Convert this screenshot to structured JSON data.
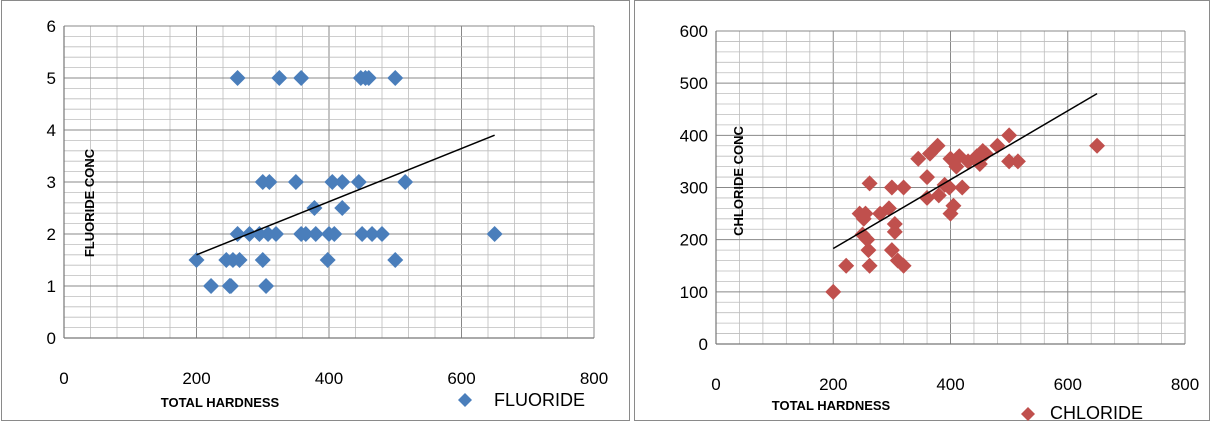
{
  "chart_data": [
    {
      "type": "scatter",
      "xlabel": "TOTAL HARDNESS",
      "ylabel": "FLUORIDE CONC",
      "xlim": [
        0,
        800
      ],
      "ylim": [
        0,
        6
      ],
      "xticks": [
        "0",
        "200",
        "400",
        "600",
        "800"
      ],
      "yticks": [
        "0",
        "1",
        "2",
        "3",
        "4",
        "5",
        "6"
      ],
      "legend_position": "bottom-right",
      "grid": true,
      "trendline": {
        "type": "linear",
        "from": [
          200,
          1.6
        ],
        "to": [
          650,
          3.9
        ]
      },
      "series": [
        {
          "name": "FLUORIDE",
          "color": "#4a7ebb",
          "marker": "diamond",
          "points": [
            [
              200,
              1.5
            ],
            [
              222,
              1.0
            ],
            [
              245,
              1.5
            ],
            [
              250,
              1.0
            ],
            [
              252,
              1.0
            ],
            [
              255,
              1.5
            ],
            [
              262,
              2.0
            ],
            [
              262,
              5.0
            ],
            [
              265,
              1.5
            ],
            [
              280,
              2.0
            ],
            [
              295,
              2.0
            ],
            [
              300,
              1.5
            ],
            [
              300,
              3.0
            ],
            [
              305,
              1.0
            ],
            [
              308,
              2.0
            ],
            [
              310,
              3.0
            ],
            [
              320,
              2.0
            ],
            [
              325,
              5.0
            ],
            [
              350,
              3.0
            ],
            [
              358,
              5.0
            ],
            [
              358,
              2.0
            ],
            [
              365,
              2.0
            ],
            [
              378,
              2.5
            ],
            [
              380,
              2.0
            ],
            [
              398,
              1.5
            ],
            [
              400,
              2.0
            ],
            [
              405,
              3.0
            ],
            [
              408,
              2.0
            ],
            [
              420,
              3.0
            ],
            [
              420,
              2.5
            ],
            [
              445,
              3.0
            ],
            [
              448,
              5.0
            ],
            [
              450,
              2.0
            ],
            [
              455,
              5.0
            ],
            [
              460,
              5.0
            ],
            [
              465,
              2.0
            ],
            [
              480,
              2.0
            ],
            [
              500,
              5.0
            ],
            [
              500,
              1.5
            ],
            [
              515,
              3.0
            ],
            [
              650,
              2.0
            ]
          ]
        }
      ]
    },
    {
      "type": "scatter",
      "xlabel": "TOTAL HARDNESS",
      "ylabel": "CHLORIDE CONC",
      "xlim": [
        0,
        800
      ],
      "ylim": [
        0,
        600
      ],
      "xticks": [
        "0",
        "200",
        "400",
        "600",
        "800"
      ],
      "yticks": [
        "0",
        "100",
        "200",
        "300",
        "400",
        "500",
        "600"
      ],
      "legend_position": "bottom-right",
      "grid": true,
      "trendline": {
        "type": "linear",
        "from": [
          200,
          183
        ],
        "to": [
          650,
          480
        ]
      },
      "series": [
        {
          "name": "CHLORIDE",
          "color": "#c0504d",
          "marker": "diamond",
          "points": [
            [
              200,
              100
            ],
            [
              222,
              150
            ],
            [
              245,
              250
            ],
            [
              250,
              210
            ],
            [
              252,
              240
            ],
            [
              255,
              250
            ],
            [
              258,
              200
            ],
            [
              260,
              180
            ],
            [
              262,
              150
            ],
            [
              262,
              308
            ],
            [
              280,
              250
            ],
            [
              295,
              260
            ],
            [
              300,
              180
            ],
            [
              300,
              300
            ],
            [
              305,
              230
            ],
            [
              305,
              215
            ],
            [
              310,
              160
            ],
            [
              320,
              150
            ],
            [
              320,
              300
            ],
            [
              345,
              355
            ],
            [
              360,
              320
            ],
            [
              360,
              280
            ],
            [
              365,
              365
            ],
            [
              378,
              380
            ],
            [
              380,
              285
            ],
            [
              390,
              305
            ],
            [
              398,
              300
            ],
            [
              400,
              250
            ],
            [
              400,
              355
            ],
            [
              405,
              265
            ],
            [
              410,
              340
            ],
            [
              415,
              360
            ],
            [
              420,
              300
            ],
            [
              430,
              350
            ],
            [
              445,
              360
            ],
            [
              450,
              345
            ],
            [
              455,
              370
            ],
            [
              460,
              365
            ],
            [
              480,
              380
            ],
            [
              500,
              400
            ],
            [
              500,
              350
            ],
            [
              515,
              350
            ],
            [
              650,
              380
            ]
          ]
        }
      ]
    }
  ]
}
